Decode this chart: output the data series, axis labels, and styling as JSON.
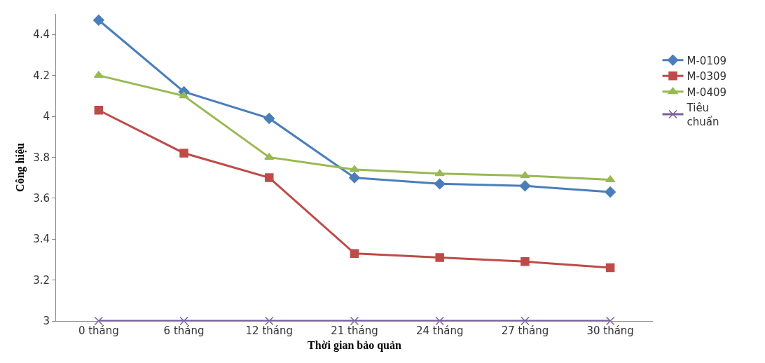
{
  "chart_data": {
    "type": "line",
    "xlabel": "Thời gian bảo quản",
    "ylabel": "Công hiệu",
    "categories": [
      "0 tháng",
      "6 tháng",
      "12 tháng",
      "21 tháng",
      "24 tháng",
      "27 tháng",
      "30 tháng"
    ],
    "series": [
      {
        "name": "M-0109",
        "color": "#4a7ebb",
        "marker": "diamond",
        "values": [
          4.47,
          4.12,
          3.99,
          3.7,
          3.67,
          3.66,
          3.63
        ]
      },
      {
        "name": "M-0309",
        "color": "#be4b48",
        "marker": "square",
        "values": [
          4.03,
          3.82,
          3.7,
          3.33,
          3.31,
          3.29,
          3.26
        ]
      },
      {
        "name": "M-0409",
        "color": "#98b954",
        "marker": "triangle",
        "values": [
          4.2,
          4.1,
          3.8,
          3.74,
          3.72,
          3.71,
          3.69
        ]
      },
      {
        "name": "Tiêu chuẩn",
        "color": "#7d5fa0",
        "marker": "cross",
        "values": [
          3,
          3,
          3,
          3,
          3,
          3,
          3
        ]
      }
    ],
    "ylim": [
      3,
      4.5
    ],
    "yticks": [
      3,
      3.2,
      3.4,
      3.6,
      3.8,
      4,
      4.2,
      4.4
    ],
    "legend": "right"
  }
}
